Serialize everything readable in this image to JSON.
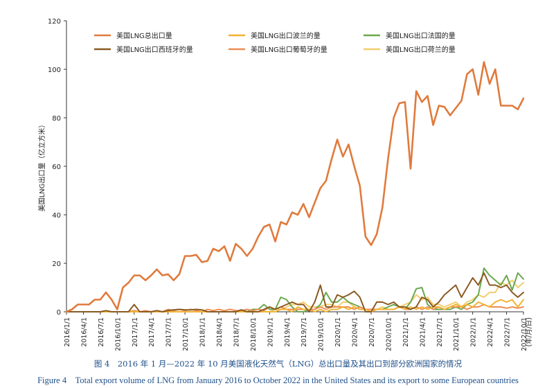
{
  "caption": {
    "zh": "图 4　2016 年 1 月—2022 年 10 月美国液化天然气（LNG）总出口量及其出口到部分欧洲国家的情况",
    "en": "Figure 4　Total export volume of LNG from January 2016 to October 2022 in the United States and its export to  some European countries"
  },
  "chart_data": {
    "type": "line",
    "title": "",
    "xlabel": "(年/月/日)",
    "ylabel": "美国LNG出口量（亿立方米）",
    "ylim": [
      0,
      120
    ],
    "yticks": [
      0,
      20,
      40,
      60,
      80,
      100,
      120
    ],
    "grid": false,
    "legend_position": "top",
    "x": [
      "2016/1",
      "2016/2",
      "2016/3",
      "2016/4",
      "2016/5",
      "2016/6",
      "2016/7",
      "2016/8",
      "2016/9",
      "2016/10",
      "2016/11",
      "2016/12",
      "2017/1",
      "2017/2",
      "2017/3",
      "2017/4",
      "2017/5",
      "2017/6",
      "2017/7",
      "2017/8",
      "2017/9",
      "2017/10",
      "2017/11",
      "2017/12",
      "2018/1",
      "2018/2",
      "2018/3",
      "2018/4",
      "2018/5",
      "2018/6",
      "2018/7",
      "2018/8",
      "2018/9",
      "2018/10",
      "2018/11",
      "2018/12",
      "2019/1",
      "2019/2",
      "2019/3",
      "2019/4",
      "2019/5",
      "2019/6",
      "2019/7",
      "2019/8",
      "2019/9",
      "2019/10",
      "2019/11",
      "2019/12",
      "2020/1",
      "2020/2",
      "2020/3",
      "2020/4",
      "2020/5",
      "2020/6",
      "2020/7",
      "2020/8",
      "2020/9",
      "2020/10",
      "2020/11",
      "2020/12",
      "2021/1",
      "2021/2",
      "2021/3",
      "2021/4",
      "2021/5",
      "2021/6",
      "2021/7",
      "2021/8",
      "2021/9",
      "2021/10",
      "2021/11",
      "2021/12",
      "2022/1",
      "2022/2",
      "2022/3",
      "2022/4",
      "2022/5",
      "2022/6",
      "2022/7",
      "2022/8",
      "2022/9",
      "2022/10"
    ],
    "tick_labels": [
      "2016/1/1",
      "2016/4/1",
      "2016/7/1",
      "2016/10/1",
      "2017/1/1",
      "2017/4/1",
      "2017/7/1",
      "2017/10/1",
      "2018/1/1",
      "2018/4/1",
      "2018/7/1",
      "2018/10/1",
      "2019/1/1",
      "2019/4/1",
      "2019/7/1",
      "2019/10/1",
      "2020/1/1",
      "2020/4/1",
      "2020/7/1",
      "2020/10/1",
      "2021/1/1",
      "2021/4/1",
      "2021/7/1",
      "2021/10/1",
      "2022/1/1",
      "2022/4/1",
      "2022/7/1",
      "2022/10/1"
    ],
    "series": [
      {
        "name": "美国LNG总出口量",
        "color": "#e07a3c",
        "width": 2.6,
        "values": [
          0,
          1,
          3,
          3,
          3,
          5,
          5,
          8,
          5,
          1,
          10,
          12,
          15,
          15,
          13,
          15,
          17.5,
          15,
          15.5,
          13,
          15.5,
          23,
          23,
          23.5,
          20.5,
          21,
          26,
          25,
          27,
          21,
          28,
          26,
          23,
          26,
          31,
          35,
          36,
          29,
          37,
          36,
          41,
          40,
          44.5,
          39,
          45,
          51,
          54,
          63,
          71,
          64,
          69,
          60,
          52,
          31,
          27.5,
          32,
          43,
          63,
          80,
          86,
          86.5,
          59,
          91,
          86.5,
          89,
          77,
          85,
          84.5,
          81,
          84,
          87,
          98,
          100,
          89.5,
          103,
          94,
          100,
          85,
          85,
          85,
          83.5,
          88
        ]
      },
      {
        "name": "美国LNG出口西班牙的量",
        "color": "#8a5a22",
        "width": 2,
        "values": [
          0,
          0,
          0,
          0,
          0,
          0,
          0,
          0.5,
          0,
          0,
          0,
          0,
          3,
          0,
          0,
          0,
          0.5,
          0,
          0.5,
          0.8,
          1,
          0.8,
          0.8,
          1,
          0.8,
          0,
          0,
          0,
          0,
          0,
          0,
          0.8,
          0,
          0,
          0,
          1,
          2,
          1,
          2,
          3,
          4,
          3,
          3,
          0,
          4,
          11,
          2,
          2,
          7,
          6,
          7,
          8.5,
          6,
          0,
          0,
          4,
          4,
          3,
          4,
          2,
          2,
          1,
          2,
          6,
          5,
          2,
          4,
          7,
          9,
          11,
          6,
          10,
          14,
          11,
          16,
          11,
          11,
          10,
          11,
          8,
          6,
          8
        ]
      },
      {
        "name": "美国LNG出口波兰的量",
        "color": "#f2b233",
        "width": 2,
        "values": [
          0,
          0,
          0,
          0,
          0,
          0,
          0,
          0,
          0,
          0,
          0,
          0,
          0,
          0,
          0,
          0,
          0,
          0,
          0,
          0,
          0,
          0,
          0,
          0,
          0,
          0,
          0,
          0,
          0,
          0,
          0,
          0,
          0,
          0,
          0,
          0,
          0,
          0,
          1,
          1,
          0,
          2,
          1,
          1,
          0,
          1,
          0,
          1,
          1,
          2,
          1,
          2,
          1,
          1,
          0,
          1,
          1,
          1,
          1,
          2,
          1,
          2,
          1,
          2,
          1,
          2,
          2,
          1,
          2,
          3,
          2,
          3,
          2,
          4,
          3,
          2,
          4,
          5,
          4,
          5,
          2,
          5
        ]
      },
      {
        "name": "美国LNG出口葡萄牙的量",
        "color": "#ec8d52",
        "width": 2,
        "values": [
          0,
          0,
          0,
          0,
          0,
          0,
          0,
          0,
          0,
          0,
          0,
          0,
          0.5,
          0,
          0.5,
          0,
          0.5,
          0,
          1,
          0.5,
          1,
          0.5,
          1,
          0.5,
          0,
          1,
          0.5,
          1,
          0.5,
          1,
          0.5,
          0.5,
          1,
          0.5,
          1,
          0.5,
          2,
          1,
          2,
          1,
          1,
          1,
          1,
          1,
          1,
          2,
          1,
          2,
          2,
          2,
          2,
          1,
          2,
          1,
          1,
          1,
          1,
          1,
          1,
          2,
          1,
          1,
          2,
          1,
          2,
          1,
          2,
          1,
          2,
          2,
          2,
          1,
          2,
          2,
          3,
          2,
          2,
          2,
          1.5,
          2,
          1.5,
          2
        ]
      },
      {
        "name": "美国LNG出口法国的量",
        "color": "#6aa84f",
        "width": 2,
        "values": [
          0,
          0,
          0,
          0,
          0,
          0,
          0,
          0,
          0,
          0,
          0,
          0,
          0,
          0,
          0,
          0,
          0,
          0,
          0,
          0,
          0,
          0,
          0,
          0,
          0,
          0,
          0,
          0,
          0,
          0,
          0,
          0,
          0,
          1,
          1,
          3,
          1,
          1,
          6,
          5,
          2,
          0,
          0,
          1,
          1,
          3,
          8,
          4,
          4,
          6,
          4,
          3,
          2,
          1,
          1,
          1,
          1,
          2,
          3,
          2,
          1,
          4,
          9.5,
          10,
          3,
          1,
          1,
          1,
          1,
          2,
          1,
          3,
          4,
          7,
          18,
          15,
          13,
          11,
          15,
          9,
          16,
          13.5
        ]
      },
      {
        "name": "美国LNG出口荷兰的量",
        "color": "#f5cc6b",
        "width": 2,
        "values": [
          0,
          0,
          0,
          0,
          0,
          0,
          0,
          0,
          0,
          0,
          0,
          0,
          0,
          0,
          0,
          0,
          0,
          0,
          0,
          0,
          0,
          0,
          0,
          0,
          0,
          0,
          0,
          0,
          0,
          0,
          0,
          0,
          0,
          0,
          0,
          0,
          0,
          1,
          1,
          2,
          3,
          3,
          4,
          2,
          2,
          2,
          3,
          3,
          2,
          4,
          4,
          2,
          1,
          1,
          1,
          1,
          2,
          1,
          1,
          2,
          3,
          4,
          7,
          5,
          6,
          3,
          3,
          2,
          3,
          4,
          2,
          4,
          5,
          7,
          6,
          8,
          8,
          12,
          11,
          13,
          10,
          12
        ]
      }
    ]
  }
}
